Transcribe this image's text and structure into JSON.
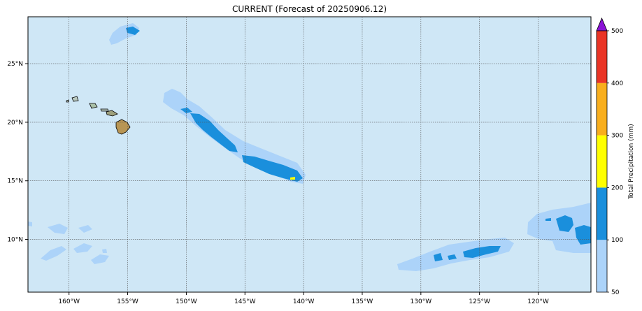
{
  "title": "CURRENT (Forecast of 20250906.12)",
  "map": {
    "background_color": "#cfe7f6",
    "lon_ticks": [
      {
        "lon": -160,
        "label": "160°W"
      },
      {
        "lon": -155,
        "label": "155°W"
      },
      {
        "lon": -150,
        "label": "150°W"
      },
      {
        "lon": -145,
        "label": "145°W"
      },
      {
        "lon": -140,
        "label": "140°W"
      },
      {
        "lon": -135,
        "label": "135°W"
      },
      {
        "lon": -130,
        "label": "130°W"
      },
      {
        "lon": -125,
        "label": "125°W"
      },
      {
        "lon": -120,
        "label": "120°W"
      }
    ],
    "lat_ticks": [
      {
        "lat": 25,
        "label": "25°N"
      },
      {
        "lat": 20,
        "label": "20°N"
      },
      {
        "lat": 15,
        "label": "15°N"
      },
      {
        "lat": 10,
        "label": "10°N"
      }
    ],
    "lon_range": [
      -163.5,
      -115.5
    ],
    "lat_range": [
      5.5,
      29
    ]
  },
  "colorbar": {
    "label": "Total Precipitation (mm)",
    "levels": [
      {
        "from": 50,
        "to": 100,
        "color": "#acd3f9"
      },
      {
        "from": 100,
        "to": 200,
        "color": "#1a8fdc"
      },
      {
        "from": 200,
        "to": 300,
        "color": "#ffff00"
      },
      {
        "from": 300,
        "to": 400,
        "color": "#f8ae1d"
      },
      {
        "from": 400,
        "to": 500,
        "color": "#ea3425"
      }
    ],
    "extend_color": "#8a12d6",
    "tick_labels": [
      "50",
      "100",
      "200",
      "300",
      "400",
      "500"
    ]
  }
}
